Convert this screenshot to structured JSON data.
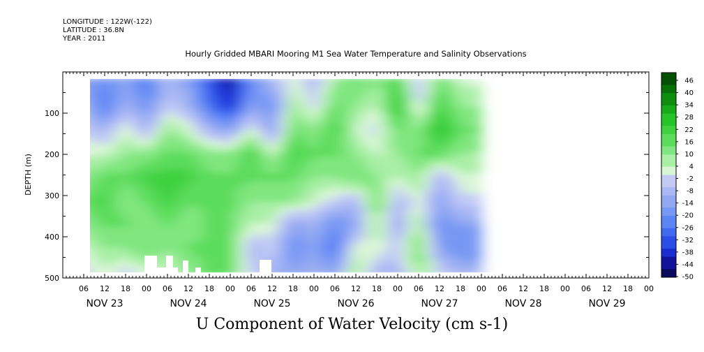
{
  "header": {
    "longitude": "LONGITUDE : 122W(-122)",
    "latitude": "LATITUDE : 36.8N",
    "year": "YEAR : 2011",
    "title": "Hourly Gridded MBARI Mooring M1 Sea Water Temperature and Salinity Observations"
  },
  "chart_data": {
    "type": "heatmap",
    "title": "Hourly Gridded MBARI Mooring M1 Sea Water Temperature and Salinity Observations",
    "variable_label": "U Component of Water Velocity (cm s-1)",
    "ylabel": "DEPTH (m)",
    "ylim": [
      500,
      0
    ],
    "y_ticks": [
      100,
      200,
      300,
      400,
      500
    ],
    "x_range_hours": [
      0,
      168
    ],
    "x_range_note": "hours since 2011-11-23 00:00",
    "data_extent_hours": [
      6,
      116
    ],
    "data_extent_depth_m": [
      25,
      485
    ],
    "hour_tick_labels": [
      "06",
      "12",
      "18",
      "00",
      "06",
      "12",
      "18",
      "00",
      "06",
      "12",
      "18",
      "00",
      "06",
      "12",
      "18",
      "00",
      "06",
      "12",
      "18",
      "00",
      "06",
      "12",
      "18",
      "00",
      "06",
      "12",
      "18",
      "00"
    ],
    "day_labels": [
      "NOV 23",
      "NOV 24",
      "NOV 25",
      "NOV 26",
      "NOV 27",
      "NOV 28",
      "NOV 29"
    ],
    "colorbar": {
      "range": [
        -50,
        50
      ],
      "labels": [
        "46",
        "40",
        "34",
        "28",
        "22",
        "16",
        "10",
        "4",
        "-2",
        "-8",
        "-14",
        "-20",
        "-26",
        "-32",
        "-38",
        "-44",
        "-50"
      ]
    },
    "approx_columns": [
      {
        "hour": 6,
        "profile": [
          -14,
          -8,
          -2,
          4,
          10,
          16,
          10,
          4,
          -2
        ]
      },
      {
        "hour": 12,
        "profile": [
          -20,
          -26,
          -8,
          4,
          16,
          22,
          16,
          10,
          4
        ]
      },
      {
        "hour": 18,
        "profile": [
          -14,
          -8,
          4,
          10,
          16,
          10,
          16,
          10,
          -2
        ]
      },
      {
        "hour": 24,
        "profile": [
          -26,
          -20,
          -8,
          10,
          22,
          16,
          10,
          16,
          4
        ]
      },
      {
        "hour": 30,
        "profile": [
          -8,
          -2,
          10,
          16,
          22,
          22,
          16,
          10,
          4
        ]
      },
      {
        "hour": 36,
        "profile": [
          -14,
          -8,
          4,
          16,
          22,
          16,
          10,
          16,
          10
        ]
      },
      {
        "hour": 42,
        "profile": [
          -32,
          -26,
          -8,
          10,
          16,
          16,
          16,
          16,
          16
        ]
      },
      {
        "hour": 48,
        "profile": [
          -44,
          -38,
          -14,
          10,
          16,
          16,
          16,
          16,
          16
        ]
      },
      {
        "hour": 54,
        "profile": [
          -20,
          -14,
          4,
          22,
          16,
          10,
          4,
          -8,
          -2
        ]
      },
      {
        "hour": 60,
        "profile": [
          -8,
          -20,
          -14,
          4,
          16,
          10,
          4,
          -2,
          -8
        ]
      },
      {
        "hour": 66,
        "profile": [
          4,
          10,
          16,
          22,
          16,
          10,
          -14,
          -20,
          -14
        ]
      },
      {
        "hour": 72,
        "profile": [
          -8,
          -2,
          10,
          16,
          10,
          4,
          -8,
          -14,
          -8
        ]
      },
      {
        "hour": 78,
        "profile": [
          10,
          16,
          22,
          16,
          10,
          -2,
          -20,
          -26,
          -14
        ]
      },
      {
        "hour": 84,
        "profile": [
          16,
          10,
          4,
          10,
          16,
          -8,
          -14,
          4,
          10
        ]
      },
      {
        "hour": 90,
        "profile": [
          10,
          4,
          -2,
          4,
          10,
          16,
          10,
          4,
          -8
        ]
      },
      {
        "hour": 96,
        "profile": [
          22,
          28,
          16,
          10,
          4,
          -8,
          -14,
          -2,
          -8
        ]
      },
      {
        "hour": 102,
        "profile": [
          -8,
          -2,
          10,
          16,
          10,
          4,
          10,
          16,
          10
        ]
      },
      {
        "hour": 108,
        "profile": [
          16,
          22,
          28,
          16,
          -8,
          -14,
          -20,
          -14,
          -2
        ]
      },
      {
        "hour": 114,
        "profile": [
          4,
          10,
          16,
          10,
          4,
          -2,
          -14,
          -20,
          -8
        ]
      }
    ]
  },
  "bottom_label": "U Component of Water Velocity (cm s-1)"
}
